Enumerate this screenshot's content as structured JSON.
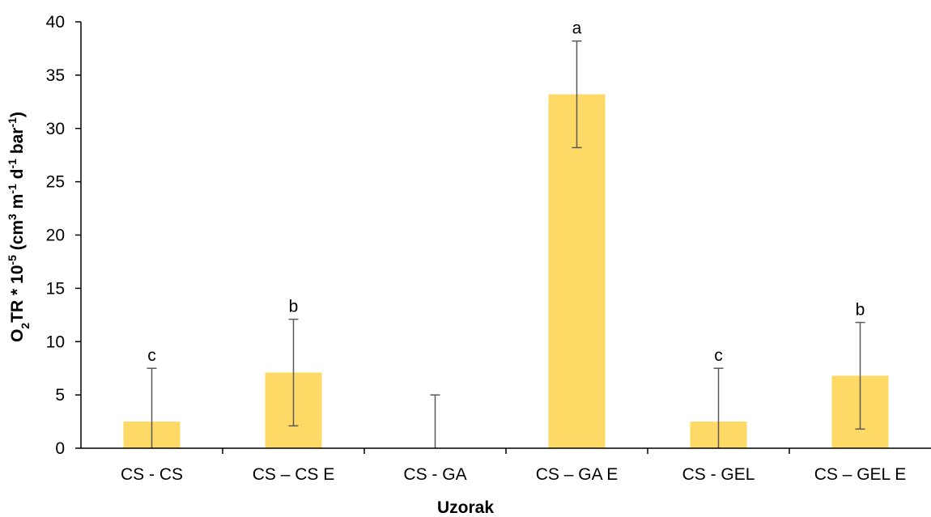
{
  "chart_data": {
    "type": "bar",
    "title": "",
    "xlabel": "Uzorak",
    "ylabel": {
      "parts": [
        {
          "text": "O",
          "sub": false,
          "sup": false
        },
        {
          "text": "2",
          "sub": true,
          "sup": false
        },
        {
          "text": "TR * 10",
          "sub": false,
          "sup": false
        },
        {
          "text": "-5",
          "sub": false,
          "sup": true
        },
        {
          "text": " (cm",
          "sub": false,
          "sup": false
        },
        {
          "text": "3",
          "sub": false,
          "sup": true
        },
        {
          "text": " m",
          "sub": false,
          "sup": false
        },
        {
          "text": "-1",
          "sub": false,
          "sup": true
        },
        {
          "text": " d",
          "sub": false,
          "sup": false
        },
        {
          "text": "-1",
          "sub": false,
          "sup": true
        },
        {
          "text": " bar",
          "sub": false,
          "sup": false
        },
        {
          "text": "-1",
          "sub": false,
          "sup": true
        },
        {
          "text": ")",
          "sub": false,
          "sup": false
        }
      ]
    },
    "ylim": [
      0,
      40
    ],
    "yticks": [
      0,
      5,
      10,
      15,
      20,
      25,
      30,
      35,
      40
    ],
    "categories": [
      "CS - CS",
      "CS – CS E",
      "CS - GA",
      "CS – GA E",
      "CS - GEL",
      "CS – GEL E"
    ],
    "values": [
      2.5,
      7.1,
      0,
      33.2,
      2.5,
      6.8
    ],
    "errors": [
      5.0,
      5.0,
      5.0,
      5.0,
      5.0,
      5.0
    ],
    "significance": [
      "c",
      "b",
      "",
      "a",
      "c",
      "b"
    ],
    "grid": false,
    "legend": "none",
    "colors": {
      "bar": "#FFD966",
      "error_bar": "#595959",
      "axis": "#000000"
    }
  }
}
